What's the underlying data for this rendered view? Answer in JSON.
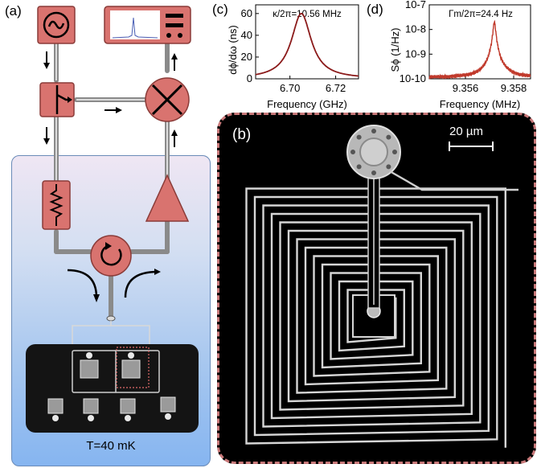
{
  "panels": {
    "a": {
      "label": "(a)",
      "temperature": "T=40 mK"
    },
    "b": {
      "label": "(b)",
      "scale_bar": "20 µm"
    },
    "c": {
      "label": "(c)"
    },
    "d": {
      "label": "(d)"
    }
  },
  "chart_data": [
    {
      "type": "line",
      "panel": "c",
      "annotation": "κ/2π=10.56 MHz",
      "xlabel": "Frequency (GHz)",
      "ylabel": "dϕ/dω (ns)",
      "x_ticks": [
        "6.70",
        "6.72"
      ],
      "y_ticks": [
        "0",
        "20",
        "40",
        "60"
      ],
      "xlim": [
        6.685,
        6.73
      ],
      "ylim": [
        0,
        68
      ],
      "series": [
        {
          "center": 6.705,
          "fwhm": 0.01056,
          "peak": 60,
          "color": "#8b1a1a"
        }
      ]
    },
    {
      "type": "line",
      "panel": "d",
      "annotation": "Γm/2π=24.4 Hz",
      "xlabel": "Frequency (MHz)",
      "ylabel": "Sϕ (1/Hz)",
      "x_ticks": [
        "9.356",
        "9.358"
      ],
      "y_ticks": [
        "10-7",
        "10-8",
        "10-9",
        "10-10"
      ],
      "xlim": [
        9.3545,
        9.3587
      ],
      "y_log": true,
      "ylim_exp": [
        -10,
        -7
      ],
      "series": [
        {
          "center": 9.3572,
          "linewidth_hz": 24.4,
          "peak_exp": -7.7,
          "floor_exp": -9.95,
          "color": "#c0392b"
        }
      ]
    }
  ]
}
